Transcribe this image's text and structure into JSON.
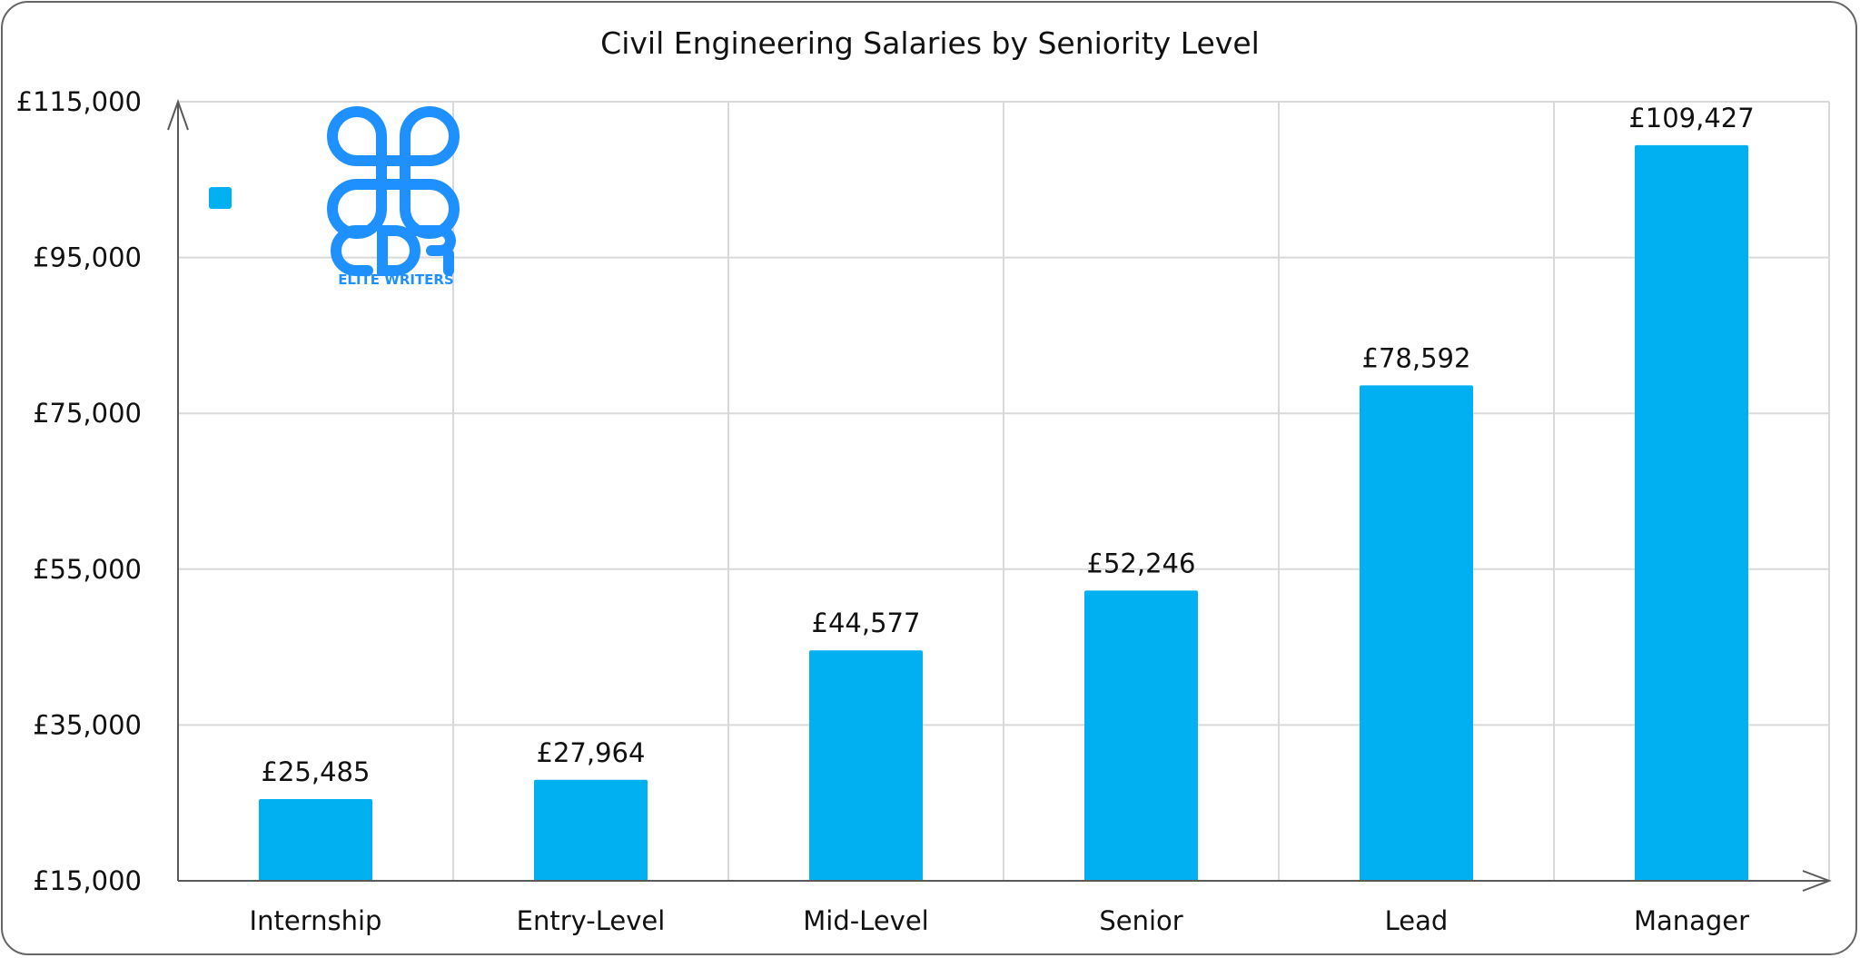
{
  "chart_data": {
    "type": "bar",
    "title": "Civil Engineering Salaries by Seniority Level",
    "categories": [
      "Internship",
      "Entry-Level",
      "Mid-Level",
      "Senior",
      "Lead",
      "Manager"
    ],
    "values": [
      25485,
      27964,
      44577,
      52246,
      78592,
      109427
    ],
    "data_labels": [
      "£25,485",
      "£27,964",
      "£44,577",
      "£52,246",
      "£78,592",
      "£109,427"
    ],
    "ylim": [
      15000,
      115000
    ],
    "yticks": [
      15000,
      35000,
      55000,
      75000,
      95000,
      115000
    ],
    "ytick_labels": [
      "£15,000",
      "£35,000",
      "£55,000",
      "£75,000",
      "£95,000",
      "£115,000"
    ],
    "xlabel": "",
    "ylabel": "",
    "grid": true,
    "legend": "top-left",
    "bar_color": "#00B0F0"
  },
  "logo": {
    "text": "CDR",
    "subtext": "ELITE WRITERS",
    "color": "#1E90FF"
  }
}
